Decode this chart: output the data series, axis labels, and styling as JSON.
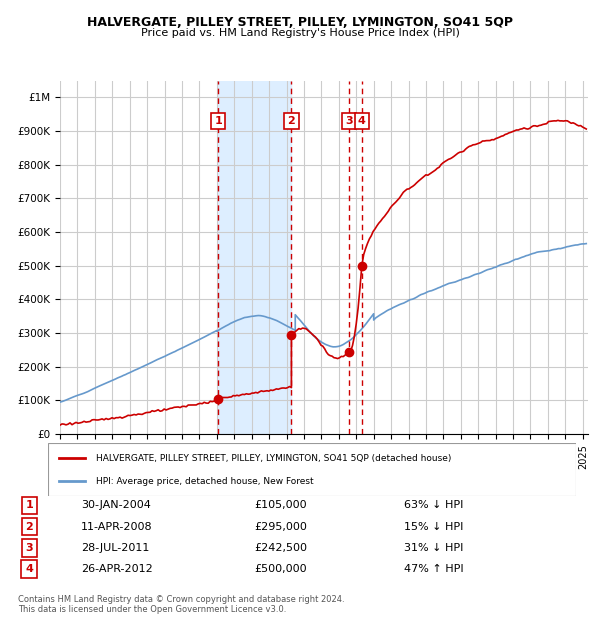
{
  "title1": "HALVERGATE, PILLEY STREET, PILLEY, LYMINGTON, SO41 5QP",
  "title2": "Price paid vs. HM Land Registry's House Price Index (HPI)",
  "legend_label_red": "HALVERGATE, PILLEY STREET, PILLEY, LYMINGTON, SO41 5QP (detached house)",
  "legend_label_blue": "HPI: Average price, detached house, New Forest",
  "footer1": "Contains HM Land Registry data © Crown copyright and database right 2024.",
  "footer2": "This data is licensed under the Open Government Licence v3.0.",
  "transactions": [
    {
      "num": 1,
      "date": "30-JAN-2004",
      "price": 105000,
      "pct": "63%",
      "dir": "↓",
      "year": 2004.08
    },
    {
      "num": 2,
      "date": "11-APR-2008",
      "price": 295000,
      "pct": "15%",
      "dir": "↓",
      "year": 2008.28
    },
    {
      "num": 3,
      "date": "28-JUL-2011",
      "price": 242500,
      "pct": "31%",
      "dir": "↓",
      "year": 2011.57
    },
    {
      "num": 4,
      "date": "26-APR-2012",
      "price": 500000,
      "pct": "47%",
      "dir": "↑",
      "year": 2012.32
    }
  ],
  "shade_start": 2008.28,
  "shade_end": 2012.32,
  "ylim": [
    0,
    1050000
  ],
  "xlim_start": 1995.0,
  "xlim_end": 2025.3,
  "grid_color": "#cccccc",
  "red_color": "#cc0000",
  "blue_color": "#6699cc",
  "shade_color": "#ddeeff"
}
